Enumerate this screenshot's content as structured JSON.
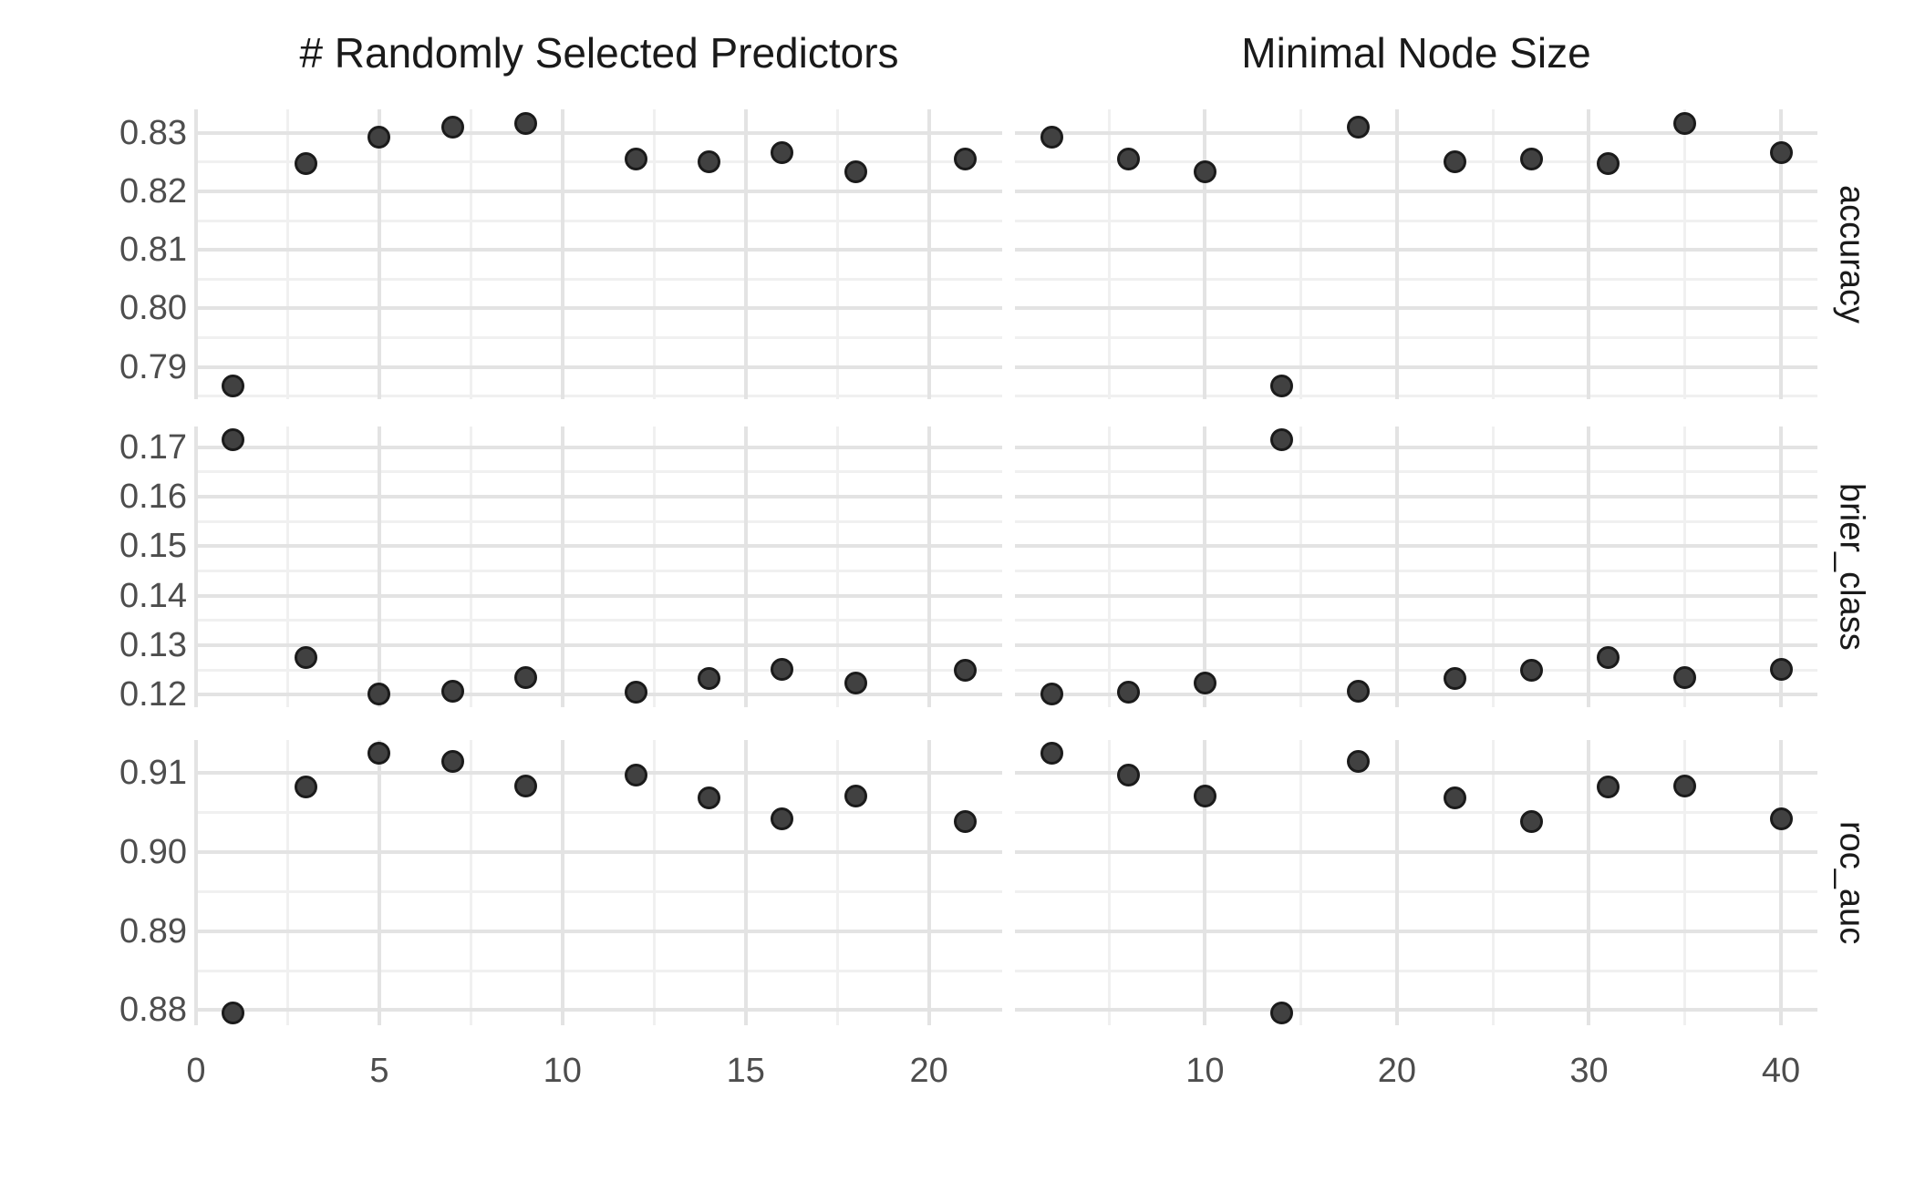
{
  "style": {
    "background": "#ffffff",
    "grid_major": "#e3e3e3",
    "grid_minor": "#f0f0f0",
    "point_fill": "#414141",
    "point_stroke": "#1b1b1b",
    "tick_text": "#4d4d4d",
    "title_text": "#1a1a1a"
  },
  "chart_data": {
    "type": "scatter",
    "title": "",
    "legend": "none",
    "grid": "on",
    "layout": "facet grid: 2 tuning-parameter columns x 3 metric rows, free scales",
    "facet_columns": [
      {
        "id": "mtry",
        "title": "# Randomly Selected Predictors",
        "xlim": [
          0,
          22
        ],
        "x_ticks": [
          {
            "value": 0,
            "label": "0"
          },
          {
            "value": 5,
            "label": "5"
          },
          {
            "value": 10,
            "label": "10"
          },
          {
            "value": 15,
            "label": "15"
          },
          {
            "value": 20,
            "label": "20"
          }
        ],
        "x_minor": [
          2.5,
          7.5,
          12.5,
          17.5
        ]
      },
      {
        "id": "min_n",
        "title": "Minimal Node Size",
        "xlim": [
          0.1,
          41.9
        ],
        "x_ticks": [
          {
            "value": 10,
            "label": "10"
          },
          {
            "value": 20,
            "label": "20"
          },
          {
            "value": 30,
            "label": "30"
          },
          {
            "value": 40,
            "label": "40"
          }
        ],
        "x_minor": [
          5,
          15,
          25,
          35
        ]
      }
    ],
    "facet_rows": [
      {
        "id": "accuracy",
        "label": "accuracy",
        "ylim": [
          0.7845,
          0.834
        ],
        "y_ticks": [
          {
            "value": 0.83,
            "label": "0.83"
          },
          {
            "value": 0.82,
            "label": "0.82"
          },
          {
            "value": 0.81,
            "label": "0.81"
          },
          {
            "value": 0.8,
            "label": "0.80"
          },
          {
            "value": 0.79,
            "label": "0.79"
          }
        ],
        "y_minor": [
          0.785,
          0.795,
          0.805,
          0.815,
          0.825
        ]
      },
      {
        "id": "brier_class",
        "label": "brier_class",
        "ylim": [
          0.1175,
          0.1742
        ],
        "y_ticks": [
          {
            "value": 0.17,
            "label": "0.17"
          },
          {
            "value": 0.16,
            "label": "0.16"
          },
          {
            "value": 0.15,
            "label": "0.15"
          },
          {
            "value": 0.14,
            "label": "0.14"
          },
          {
            "value": 0.13,
            "label": "0.13"
          },
          {
            "value": 0.12,
            "label": "0.12"
          }
        ],
        "y_minor": [
          0.125,
          0.135,
          0.145,
          0.155,
          0.165
        ]
      },
      {
        "id": "roc_auc",
        "label": "roc_auc",
        "ylim": [
          0.8781,
          0.9141
        ],
        "y_ticks": [
          {
            "value": 0.91,
            "label": "0.91"
          },
          {
            "value": 0.9,
            "label": "0.90"
          },
          {
            "value": 0.89,
            "label": "0.89"
          },
          {
            "value": 0.88,
            "label": "0.88"
          }
        ],
        "y_minor": [
          0.885,
          0.895,
          0.905
        ]
      }
    ],
    "results": [
      {
        "mtry": 1,
        "min_n": 14,
        "accuracy": 0.7868,
        "brier_class": 0.1716,
        "roc_auc": 0.8797
      },
      {
        "mtry": 3,
        "min_n": 31,
        "accuracy": 0.8248,
        "brier_class": 0.1276,
        "roc_auc": 0.9082
      },
      {
        "mtry": 5,
        "min_n": 2,
        "accuracy": 0.8293,
        "brier_class": 0.1202,
        "roc_auc": 0.9124
      },
      {
        "mtry": 7,
        "min_n": 18,
        "accuracy": 0.831,
        "brier_class": 0.1208,
        "roc_auc": 0.9114
      },
      {
        "mtry": 9,
        "min_n": 35,
        "accuracy": 0.8316,
        "brier_class": 0.1234,
        "roc_auc": 0.9083
      },
      {
        "mtry": 12,
        "min_n": 6,
        "accuracy": 0.8255,
        "brier_class": 0.1206,
        "roc_auc": 0.9097
      },
      {
        "mtry": 14,
        "min_n": 23,
        "accuracy": 0.8251,
        "brier_class": 0.1233,
        "roc_auc": 0.9068
      },
      {
        "mtry": 16,
        "min_n": 40,
        "accuracy": 0.8266,
        "brier_class": 0.1251,
        "roc_auc": 0.9042
      },
      {
        "mtry": 18,
        "min_n": 10,
        "accuracy": 0.8233,
        "brier_class": 0.1224,
        "roc_auc": 0.907
      },
      {
        "mtry": 21,
        "min_n": 27,
        "accuracy": 0.8255,
        "brier_class": 0.125,
        "roc_auc": 0.9038
      }
    ]
  }
}
